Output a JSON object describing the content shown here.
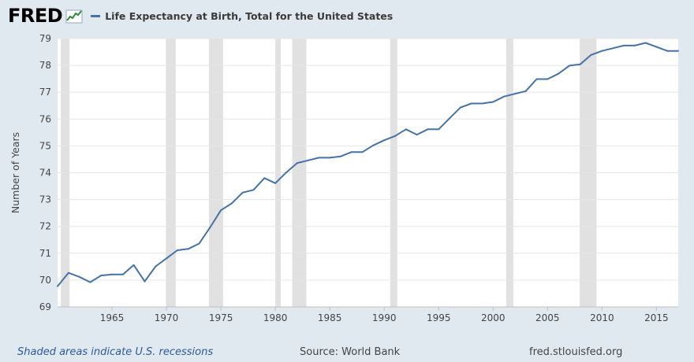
{
  "header": {
    "logo": "FRED",
    "legend_label": "Life Expectancy at Birth, Total for the United States",
    "line_color": "#4572a7"
  },
  "footer": {
    "note": "Shaded areas indicate U.S. recessions",
    "source": "Source: World Bank",
    "site": "fred.stlouisfed.org"
  },
  "chart_data": {
    "type": "line",
    "title": "Life Expectancy at Birth, Total for the United States",
    "xlabel": "",
    "ylabel": "Number of Years",
    "xlim": [
      1960,
      2017
    ],
    "ylim": [
      69,
      79
    ],
    "y_ticks": [
      69,
      70,
      71,
      72,
      73,
      74,
      75,
      76,
      77,
      78,
      79
    ],
    "x_ticks": [
      1965,
      1970,
      1975,
      1980,
      1985,
      1990,
      1995,
      2000,
      2005,
      2010,
      2015
    ],
    "grid": true,
    "recession_color": "#e1e1e1",
    "recessions": [
      [
        1960.3,
        1961.1
      ],
      [
        1969.95,
        1970.85
      ],
      [
        1973.9,
        1975.2
      ],
      [
        1980.0,
        1980.5
      ],
      [
        1981.55,
        1982.85
      ],
      [
        1990.55,
        1991.2
      ],
      [
        2001.2,
        2001.85
      ],
      [
        2007.95,
        2009.5
      ]
    ],
    "series": [
      {
        "name": "Life Expectancy at Birth, Total for the United States",
        "x": [
          1960,
          1961,
          1962,
          1963,
          1964,
          1965,
          1966,
          1967,
          1968,
          1969,
          1970,
          1971,
          1972,
          1973,
          1974,
          1975,
          1976,
          1977,
          1978,
          1979,
          1980,
          1981,
          1982,
          1983,
          1984,
          1985,
          1986,
          1987,
          1988,
          1989,
          1990,
          1991,
          1992,
          1993,
          1994,
          1995,
          1996,
          1997,
          1998,
          1999,
          2000,
          2001,
          2002,
          2003,
          2004,
          2005,
          2006,
          2007,
          2008,
          2009,
          2010,
          2011,
          2012,
          2013,
          2014,
          2015,
          2016,
          2017
        ],
        "values": [
          69.77,
          70.27,
          70.12,
          69.92,
          70.17,
          70.21,
          70.21,
          70.56,
          69.95,
          70.51,
          70.81,
          71.11,
          71.16,
          71.36,
          71.96,
          72.6,
          72.86,
          73.26,
          73.36,
          73.8,
          73.61,
          74.01,
          74.36,
          74.46,
          74.56,
          74.56,
          74.61,
          74.77,
          74.77,
          75.02,
          75.21,
          75.37,
          75.62,
          75.42,
          75.62,
          75.62,
          76.03,
          76.43,
          76.58,
          76.58,
          76.64,
          76.84,
          76.94,
          77.04,
          77.49,
          77.49,
          77.69,
          77.99,
          78.04,
          78.39,
          78.54,
          78.64,
          78.74,
          78.74,
          78.84,
          78.69,
          78.54,
          78.54
        ]
      }
    ]
  }
}
